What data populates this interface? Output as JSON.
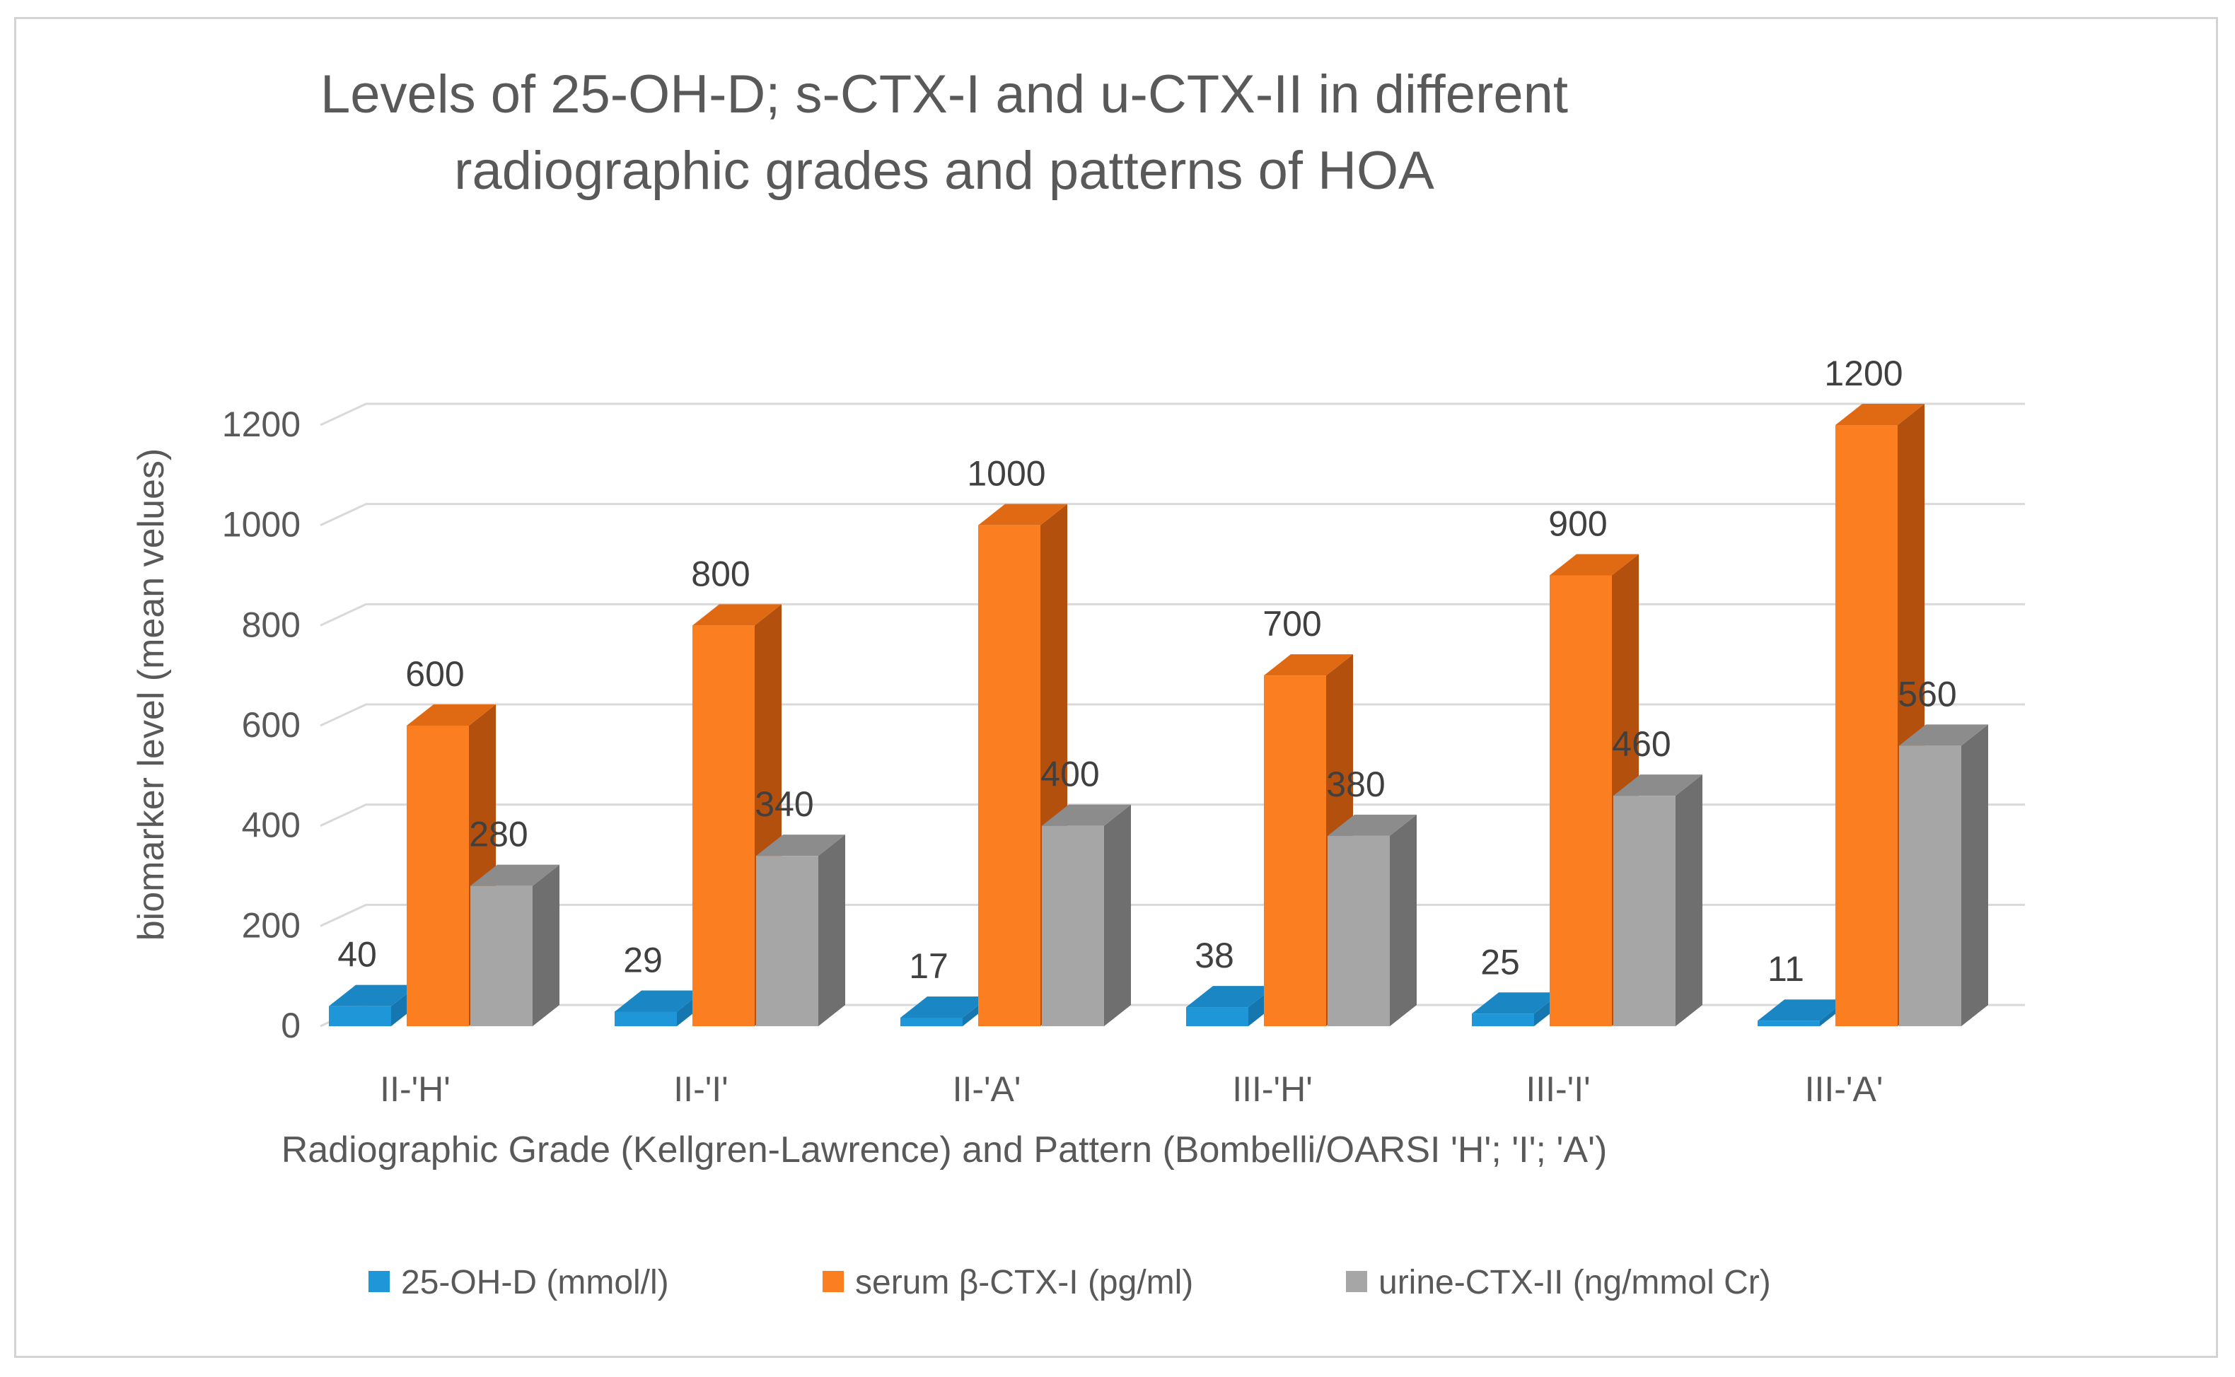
{
  "chart_data": {
    "type": "bar",
    "title": [
      "Levels of 25-OH-D; s-CTX-I and u-CTX-II in different",
      "radiographic grades and patterns of HOA"
    ],
    "xlabel": "Radiographic Grade (Kellgren-Lawrence) and Pattern (Bombelli/OARSI 'H'; 'I'; 'A')",
    "ylabel": "biomarker level (mean velues)",
    "ylim": [
      0,
      1200
    ],
    "yticks": [
      "0",
      "200",
      "400",
      "600",
      "800",
      "1000",
      "1200"
    ],
    "categories": [
      "II-'H'",
      "II-'I'",
      "II-'A'",
      "III-'H'",
      "III-'I'",
      "III-'A'"
    ],
    "series": [
      {
        "name": "25-OH-D (mmol/l)",
        "values": [
          40,
          29,
          17,
          38,
          25,
          11
        ],
        "color": "#1f96d8",
        "side": "#1677b0",
        "top": "#1a86c4"
      },
      {
        "name": "serum β-CTX-I (pg/ml)",
        "values": [
          600,
          800,
          1000,
          700,
          900,
          1200
        ],
        "color": "#fb7f20",
        "side": "#b4500e",
        "top": "#e06a14"
      },
      {
        "name": "urine-CTX-II (ng/mmol Cr)",
        "values": [
          280,
          340,
          400,
          380,
          460,
          560
        ],
        "color": "#a6a6a6",
        "side": "#6f6f6f",
        "top": "#8c8c8c"
      }
    ],
    "data_labels": [
      [
        "40",
        "29",
        "17",
        "38",
        "25",
        "11"
      ],
      [
        "600",
        "800",
        "1000",
        "700",
        "900",
        "1200"
      ],
      [
        "280",
        "340",
        "400",
        "380",
        "460",
        "560"
      ]
    ],
    "legend_position": "bottom",
    "grid": true
  }
}
